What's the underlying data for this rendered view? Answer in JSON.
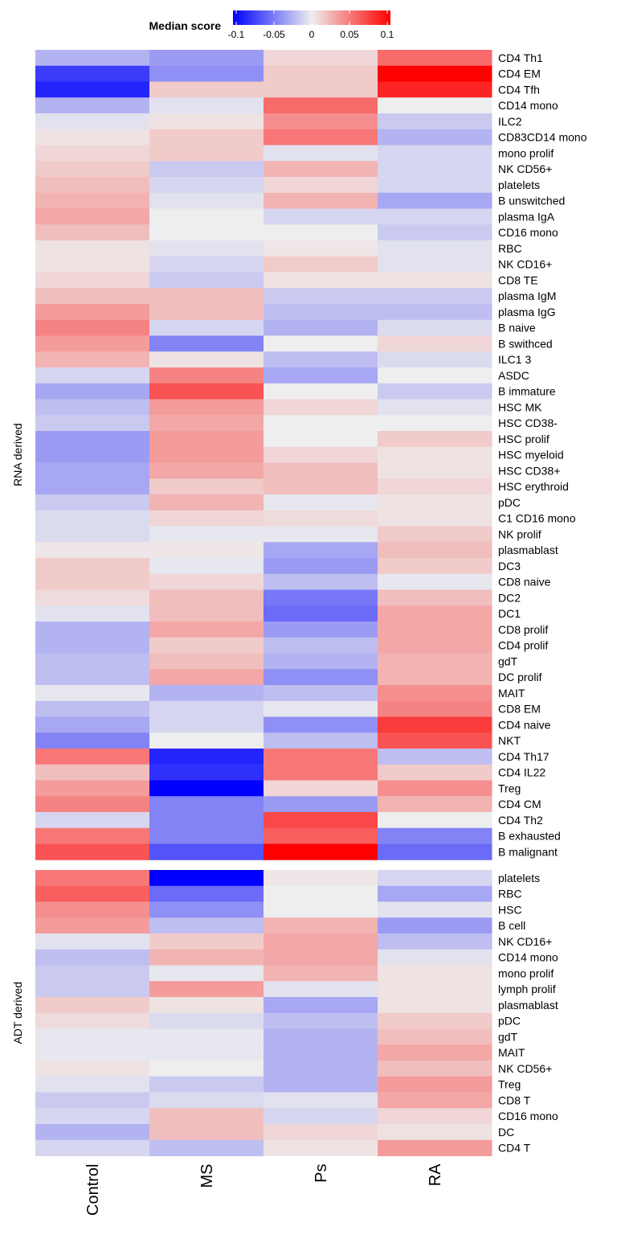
{
  "chart_data": {
    "type": "heatmap",
    "legend": {
      "title": "Median score",
      "placement": "top",
      "range": [
        -0.1,
        0.1
      ],
      "ticks": [
        -0.1,
        -0.05,
        0,
        0.05,
        0.1
      ],
      "tick_labels": [
        "-0.1",
        "-0.05",
        "0",
        "0.05",
        "0.1"
      ],
      "low_color": "#0000ff",
      "mid_color": "#eeeeee",
      "high_color": "#ff0000"
    },
    "columns": [
      "Control",
      "MS",
      "Ps",
      "RA"
    ],
    "panels": [
      {
        "label": "RNA derived",
        "rows": [
          {
            "name": "CD4 Th1",
            "values": [
              -0.025,
              -0.035,
              0.01,
              0.055
            ]
          },
          {
            "name": "CD4 EM",
            "values": [
              -0.075,
              -0.04,
              0.015,
              0.1
            ]
          },
          {
            "name": "CD4 Tfh",
            "values": [
              -0.085,
              0.015,
              0.015,
              0.085
            ]
          },
          {
            "name": "CD14 mono",
            "values": [
              -0.025,
              -0.005,
              0.055,
              0.0
            ]
          },
          {
            "name": "ILC2",
            "values": [
              -0.005,
              0.005,
              0.04,
              -0.015
            ]
          },
          {
            "name": "CD83CD14 mono",
            "values": [
              0.005,
              0.015,
              0.05,
              -0.025
            ]
          },
          {
            "name": "mono prolif",
            "values": [
              0.01,
              0.015,
              -0.005,
              -0.01
            ]
          },
          {
            "name": "NK CD56+",
            "values": [
              0.015,
              -0.015,
              0.025,
              -0.01
            ]
          },
          {
            "name": "platelets",
            "values": [
              0.02,
              -0.01,
              0.01,
              -0.01
            ]
          },
          {
            "name": "B unswitched",
            "values": [
              0.025,
              -0.005,
              0.025,
              -0.03
            ]
          },
          {
            "name": "plasma IgA",
            "values": [
              0.03,
              0.0,
              -0.01,
              -0.01
            ]
          },
          {
            "name": "CD16 mono",
            "values": [
              0.02,
              0.0,
              0.0,
              -0.015
            ]
          },
          {
            "name": "RBC",
            "values": [
              0.005,
              -0.005,
              0.003,
              -0.005
            ]
          },
          {
            "name": "NK CD16+",
            "values": [
              0.005,
              -0.01,
              0.015,
              -0.005
            ]
          },
          {
            "name": "CD8 TE",
            "values": [
              0.01,
              -0.015,
              0.005,
              0.005
            ]
          },
          {
            "name": "plasma IgM",
            "values": [
              0.02,
              0.02,
              -0.015,
              -0.015
            ]
          },
          {
            "name": "plasma IgG",
            "values": [
              0.035,
              0.02,
              -0.02,
              -0.02
            ]
          },
          {
            "name": "B naive",
            "values": [
              0.045,
              -0.01,
              -0.025,
              -0.008
            ]
          },
          {
            "name": "B swithced",
            "values": [
              0.035,
              -0.045,
              0.0,
              0.01
            ]
          },
          {
            "name": "ILC1 3",
            "values": [
              0.025,
              0.005,
              -0.02,
              -0.008
            ]
          },
          {
            "name": "ASDC",
            "values": [
              -0.01,
              0.045,
              -0.03,
              0.0
            ]
          },
          {
            "name": "B immature",
            "values": [
              -0.03,
              0.065,
              0.0,
              -0.015
            ]
          },
          {
            "name": "HSC MK",
            "values": [
              -0.02,
              0.035,
              0.01,
              -0.005
            ]
          },
          {
            "name": "HSC CD38-",
            "values": [
              -0.015,
              0.03,
              0.0,
              0.0
            ]
          },
          {
            "name": "HSC prolif",
            "values": [
              -0.035,
              0.035,
              0.0,
              0.015
            ]
          },
          {
            "name": "HSC myeloid",
            "values": [
              -0.035,
              0.035,
              0.01,
              0.005
            ]
          },
          {
            "name": "HSC CD38+",
            "values": [
              -0.03,
              0.03,
              0.02,
              0.005
            ]
          },
          {
            "name": "HSC erythroid",
            "values": [
              -0.03,
              0.015,
              0.02,
              0.01
            ]
          },
          {
            "name": "pDC",
            "values": [
              -0.015,
              0.025,
              -0.003,
              0.005
            ]
          },
          {
            "name": "C1 CD16 mono",
            "values": [
              -0.008,
              0.01,
              0.008,
              0.005
            ]
          },
          {
            "name": "NK prolif",
            "values": [
              -0.008,
              -0.003,
              -0.003,
              0.015
            ]
          },
          {
            "name": "plasmablast",
            "values": [
              0.003,
              0.003,
              -0.03,
              0.02
            ]
          },
          {
            "name": "DC3",
            "values": [
              0.015,
              -0.003,
              -0.035,
              0.015
            ]
          },
          {
            "name": "CD8 naive",
            "values": [
              0.015,
              0.01,
              -0.02,
              -0.003
            ]
          },
          {
            "name": "DC2",
            "values": [
              0.008,
              0.02,
              -0.05,
              0.02
            ]
          },
          {
            "name": "DC1",
            "values": [
              -0.005,
              0.02,
              -0.055,
              0.03
            ]
          },
          {
            "name": "CD8 prolif",
            "values": [
              -0.025,
              0.03,
              -0.035,
              0.03
            ]
          },
          {
            "name": "CD4 prolif",
            "values": [
              -0.025,
              0.015,
              -0.02,
              0.03
            ]
          },
          {
            "name": "gdT",
            "values": [
              -0.02,
              0.02,
              -0.025,
              0.025
            ]
          },
          {
            "name": "DC prolif",
            "values": [
              -0.02,
              0.03,
              -0.04,
              0.025
            ]
          },
          {
            "name": "MAIT",
            "values": [
              -0.003,
              -0.025,
              -0.02,
              0.04
            ]
          },
          {
            "name": "CD8 EM",
            "values": [
              -0.02,
              -0.01,
              -0.003,
              0.045
            ]
          },
          {
            "name": "CD4 naive",
            "values": [
              -0.03,
              -0.01,
              -0.04,
              0.075
            ]
          },
          {
            "name": "NKT",
            "values": [
              -0.045,
              0.0,
              -0.02,
              0.065
            ]
          },
          {
            "name": "CD4 Th17",
            "values": [
              0.05,
              -0.085,
              0.05,
              -0.02
            ]
          },
          {
            "name": "CD4 IL22",
            "values": [
              0.02,
              -0.08,
              0.05,
              0.015
            ]
          },
          {
            "name": "Treg",
            "values": [
              0.035,
              -0.1,
              0.01,
              0.04
            ]
          },
          {
            "name": "CD4 CM",
            "values": [
              0.045,
              -0.045,
              -0.035,
              0.025
            ]
          },
          {
            "name": "CD4 Th2",
            "values": [
              -0.01,
              -0.045,
              0.07,
              0.0
            ]
          },
          {
            "name": "B exhausted",
            "values": [
              0.05,
              -0.045,
              0.06,
              -0.045
            ]
          },
          {
            "name": "B malignant",
            "values": [
              0.065,
              -0.065,
              0.1,
              -0.055
            ]
          }
        ]
      },
      {
        "label": "ADT derived",
        "rows": [
          {
            "name": "platelets",
            "values": [
              0.05,
              -0.1,
              0.003,
              -0.01
            ]
          },
          {
            "name": "RBC",
            "values": [
              0.06,
              -0.055,
              0.0,
              -0.03
            ]
          },
          {
            "name": "HSC",
            "values": [
              0.04,
              -0.04,
              0.0,
              -0.005
            ]
          },
          {
            "name": "B cell",
            "values": [
              0.035,
              -0.02,
              0.025,
              -0.035
            ]
          },
          {
            "name": "NK CD16+",
            "values": [
              -0.005,
              0.015,
              0.03,
              -0.02
            ]
          },
          {
            "name": "CD14 mono",
            "values": [
              -0.02,
              0.025,
              0.03,
              -0.005
            ]
          },
          {
            "name": "mono prolif",
            "values": [
              -0.015,
              -0.003,
              0.025,
              0.005
            ]
          },
          {
            "name": "lymph prolif",
            "values": [
              -0.015,
              0.035,
              -0.005,
              0.005
            ]
          },
          {
            "name": "plasmablast",
            "values": [
              0.015,
              0.005,
              -0.03,
              0.005
            ]
          },
          {
            "name": "pDC",
            "values": [
              0.008,
              -0.008,
              -0.02,
              0.015
            ]
          },
          {
            "name": "gdT",
            "values": [
              -0.003,
              -0.003,
              -0.025,
              0.02
            ]
          },
          {
            "name": "MAIT",
            "values": [
              -0.003,
              -0.003,
              -0.025,
              0.03
            ]
          },
          {
            "name": "NK CD56+",
            "values": [
              0.005,
              0.0,
              -0.025,
              0.02
            ]
          },
          {
            "name": "Treg",
            "values": [
              -0.005,
              -0.015,
              -0.025,
              0.035
            ]
          },
          {
            "name": "CD8 T",
            "values": [
              -0.015,
              -0.008,
              -0.005,
              0.03
            ]
          },
          {
            "name": "CD16 mono",
            "values": [
              -0.01,
              0.02,
              -0.01,
              0.01
            ]
          },
          {
            "name": "DC",
            "values": [
              -0.025,
              0.02,
              0.01,
              0.005
            ]
          },
          {
            "name": "CD4 T",
            "values": [
              -0.01,
              -0.02,
              0.005,
              0.035
            ]
          }
        ]
      }
    ]
  }
}
